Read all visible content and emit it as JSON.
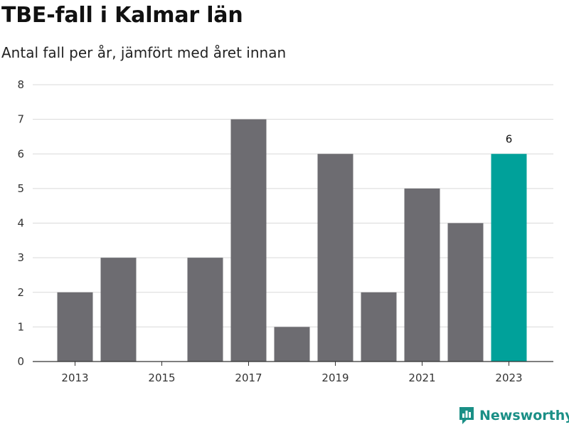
{
  "chart_data": {
    "type": "bar",
    "title": "TBE-fall i Kalmar län",
    "subtitle": "Antal fall per år, jämfört med året innan",
    "categories": [
      "2013",
      "2014",
      "2015",
      "2016",
      "2017",
      "2018",
      "2019",
      "2020",
      "2021",
      "2022",
      "2023"
    ],
    "values": [
      2,
      3,
      0,
      3,
      7,
      1,
      6,
      2,
      5,
      4,
      6
    ],
    "x_tick_labels": [
      "2013",
      "2015",
      "2017",
      "2019",
      "2021",
      "2023"
    ],
    "y_ticks": [
      "0",
      "1",
      "2",
      "3",
      "4",
      "5",
      "6",
      "7",
      "8"
    ],
    "ylim": [
      0,
      8
    ],
    "grid": true,
    "highlight": {
      "category": "2023",
      "label": "6"
    },
    "colors": {
      "bar": "#6d6c71",
      "highlight": "#00a19a",
      "grid": "#d9d9d9",
      "axis": "#333333"
    }
  },
  "brand": {
    "name": "Newsworthy",
    "color": "#1a8f86"
  }
}
